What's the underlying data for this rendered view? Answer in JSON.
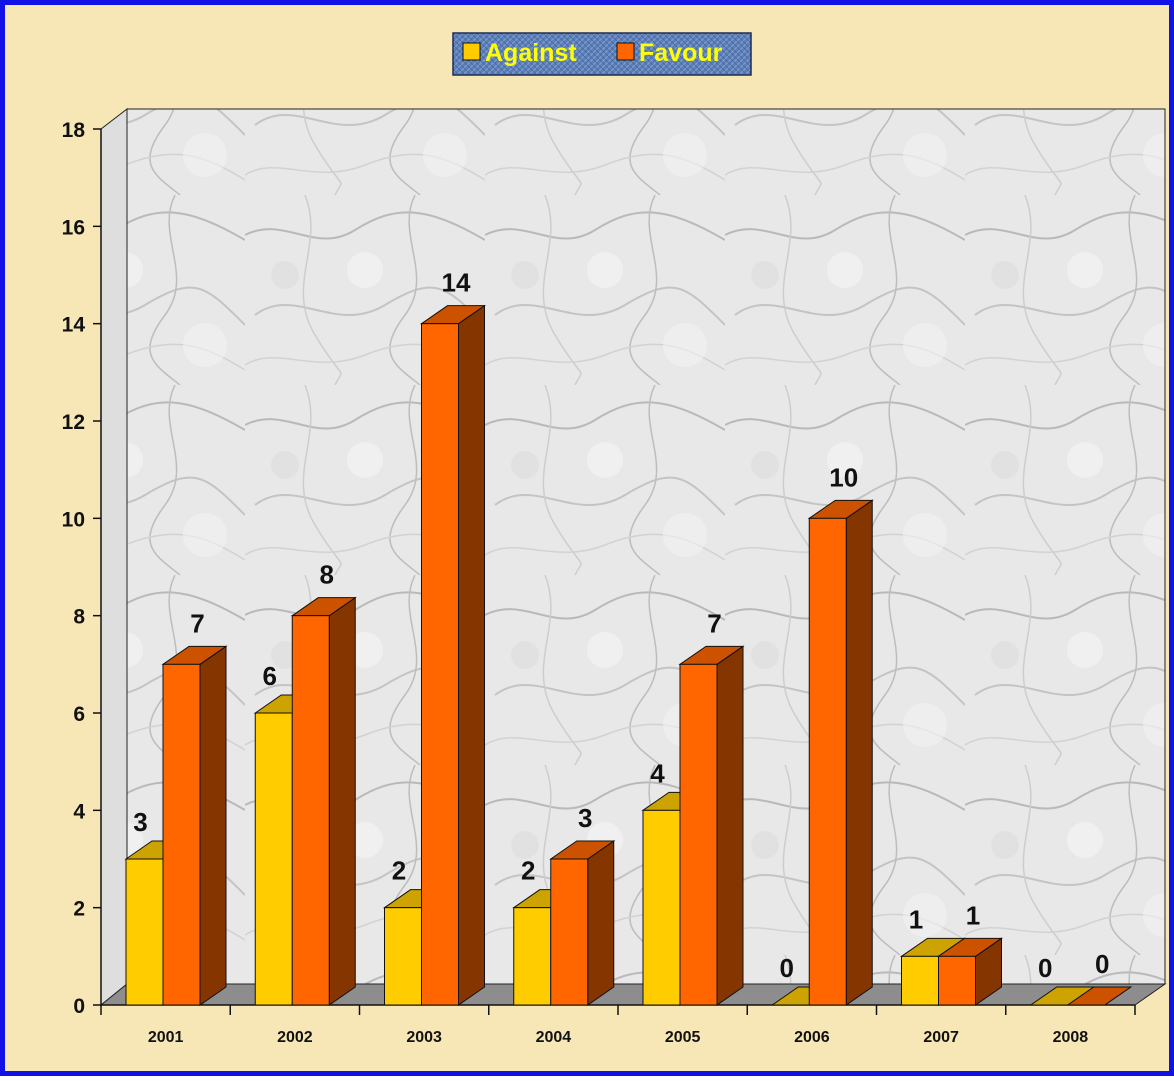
{
  "chart_data": {
    "type": "bar",
    "title": "",
    "xlabel": "",
    "ylabel": "",
    "categories": [
      "2001",
      "2002",
      "2003",
      "2004",
      "2005",
      "2006",
      "2007",
      "2008"
    ],
    "series": [
      {
        "name": "Against",
        "values": [
          3,
          6,
          2,
          2,
          4,
          0,
          1,
          0
        ],
        "color": "#ffcc00"
      },
      {
        "name": "Favour",
        "values": [
          7,
          8,
          14,
          3,
          7,
          10,
          1,
          0
        ],
        "color": "#ff6600"
      }
    ],
    "ylim": [
      0,
      18
    ],
    "y_ticks": [
      0,
      2,
      4,
      6,
      8,
      10,
      12,
      14,
      16,
      18
    ],
    "legend": "top-center",
    "grid": false,
    "style": "3d"
  }
}
